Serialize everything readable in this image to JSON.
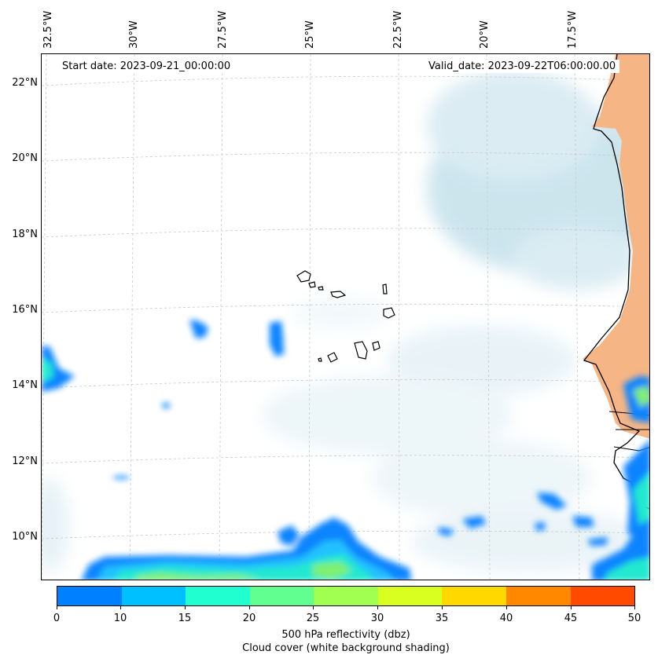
{
  "map": {
    "start_date": "Start date: 2023-09-21_00:00:00",
    "valid_date": "Valid_date: 2023-09-22T06:00:00.00",
    "lon_labels": [
      "32.5°W",
      "30°W",
      "27.5°W",
      "25°W",
      "22.5°W",
      "20°W",
      "17.5°W"
    ],
    "lat_labels": [
      "22°N",
      "20°N",
      "18°N",
      "16°N",
      "14°N",
      "12°N",
      "10°N"
    ],
    "region": "Cape Verde / West Africa coast"
  },
  "colorbar": {
    "ticks": [
      "0",
      "10",
      "15",
      "20",
      "25",
      "30",
      "35",
      "40",
      "45",
      "50"
    ],
    "colors": [
      "#0080ff",
      "#00c0ff",
      "#20ffd0",
      "#60ff90",
      "#a0ff50",
      "#d8ff20",
      "#ffd800",
      "#ff8800",
      "#ff4a00"
    ],
    "label": "500 hPa reflectivity (dbz)",
    "sublabel": "Cloud cover (white background shading)"
  },
  "colors": {
    "land": "#f5b585",
    "cloud": "#cfe6ef",
    "refl_low": "#0a84ff",
    "refl_mid": "#20e8d0",
    "refl_high": "#80f070"
  }
}
